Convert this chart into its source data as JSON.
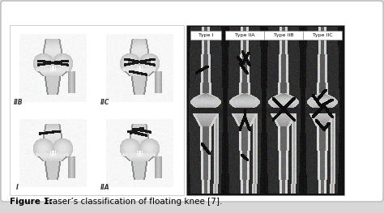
{
  "figure_caption": "Figure 1: Fraser's classification of floating knee [7].",
  "caption_fontsize": 7.5,
  "caption_bold_part": "Figure 1:",
  "caption_normal_part": " Fraser’s classification of floating knee [7].",
  "bg_color": "#d8d8d8",
  "panel_bg_color": "#ffffff",
  "border_color": "#aaaaaa",
  "xray_labels": [
    "Type I",
    "Type IIA",
    "Type IIB",
    "Type IIC"
  ],
  "drawing_labels": [
    "I",
    "IIA",
    "IIB",
    "IIC"
  ]
}
